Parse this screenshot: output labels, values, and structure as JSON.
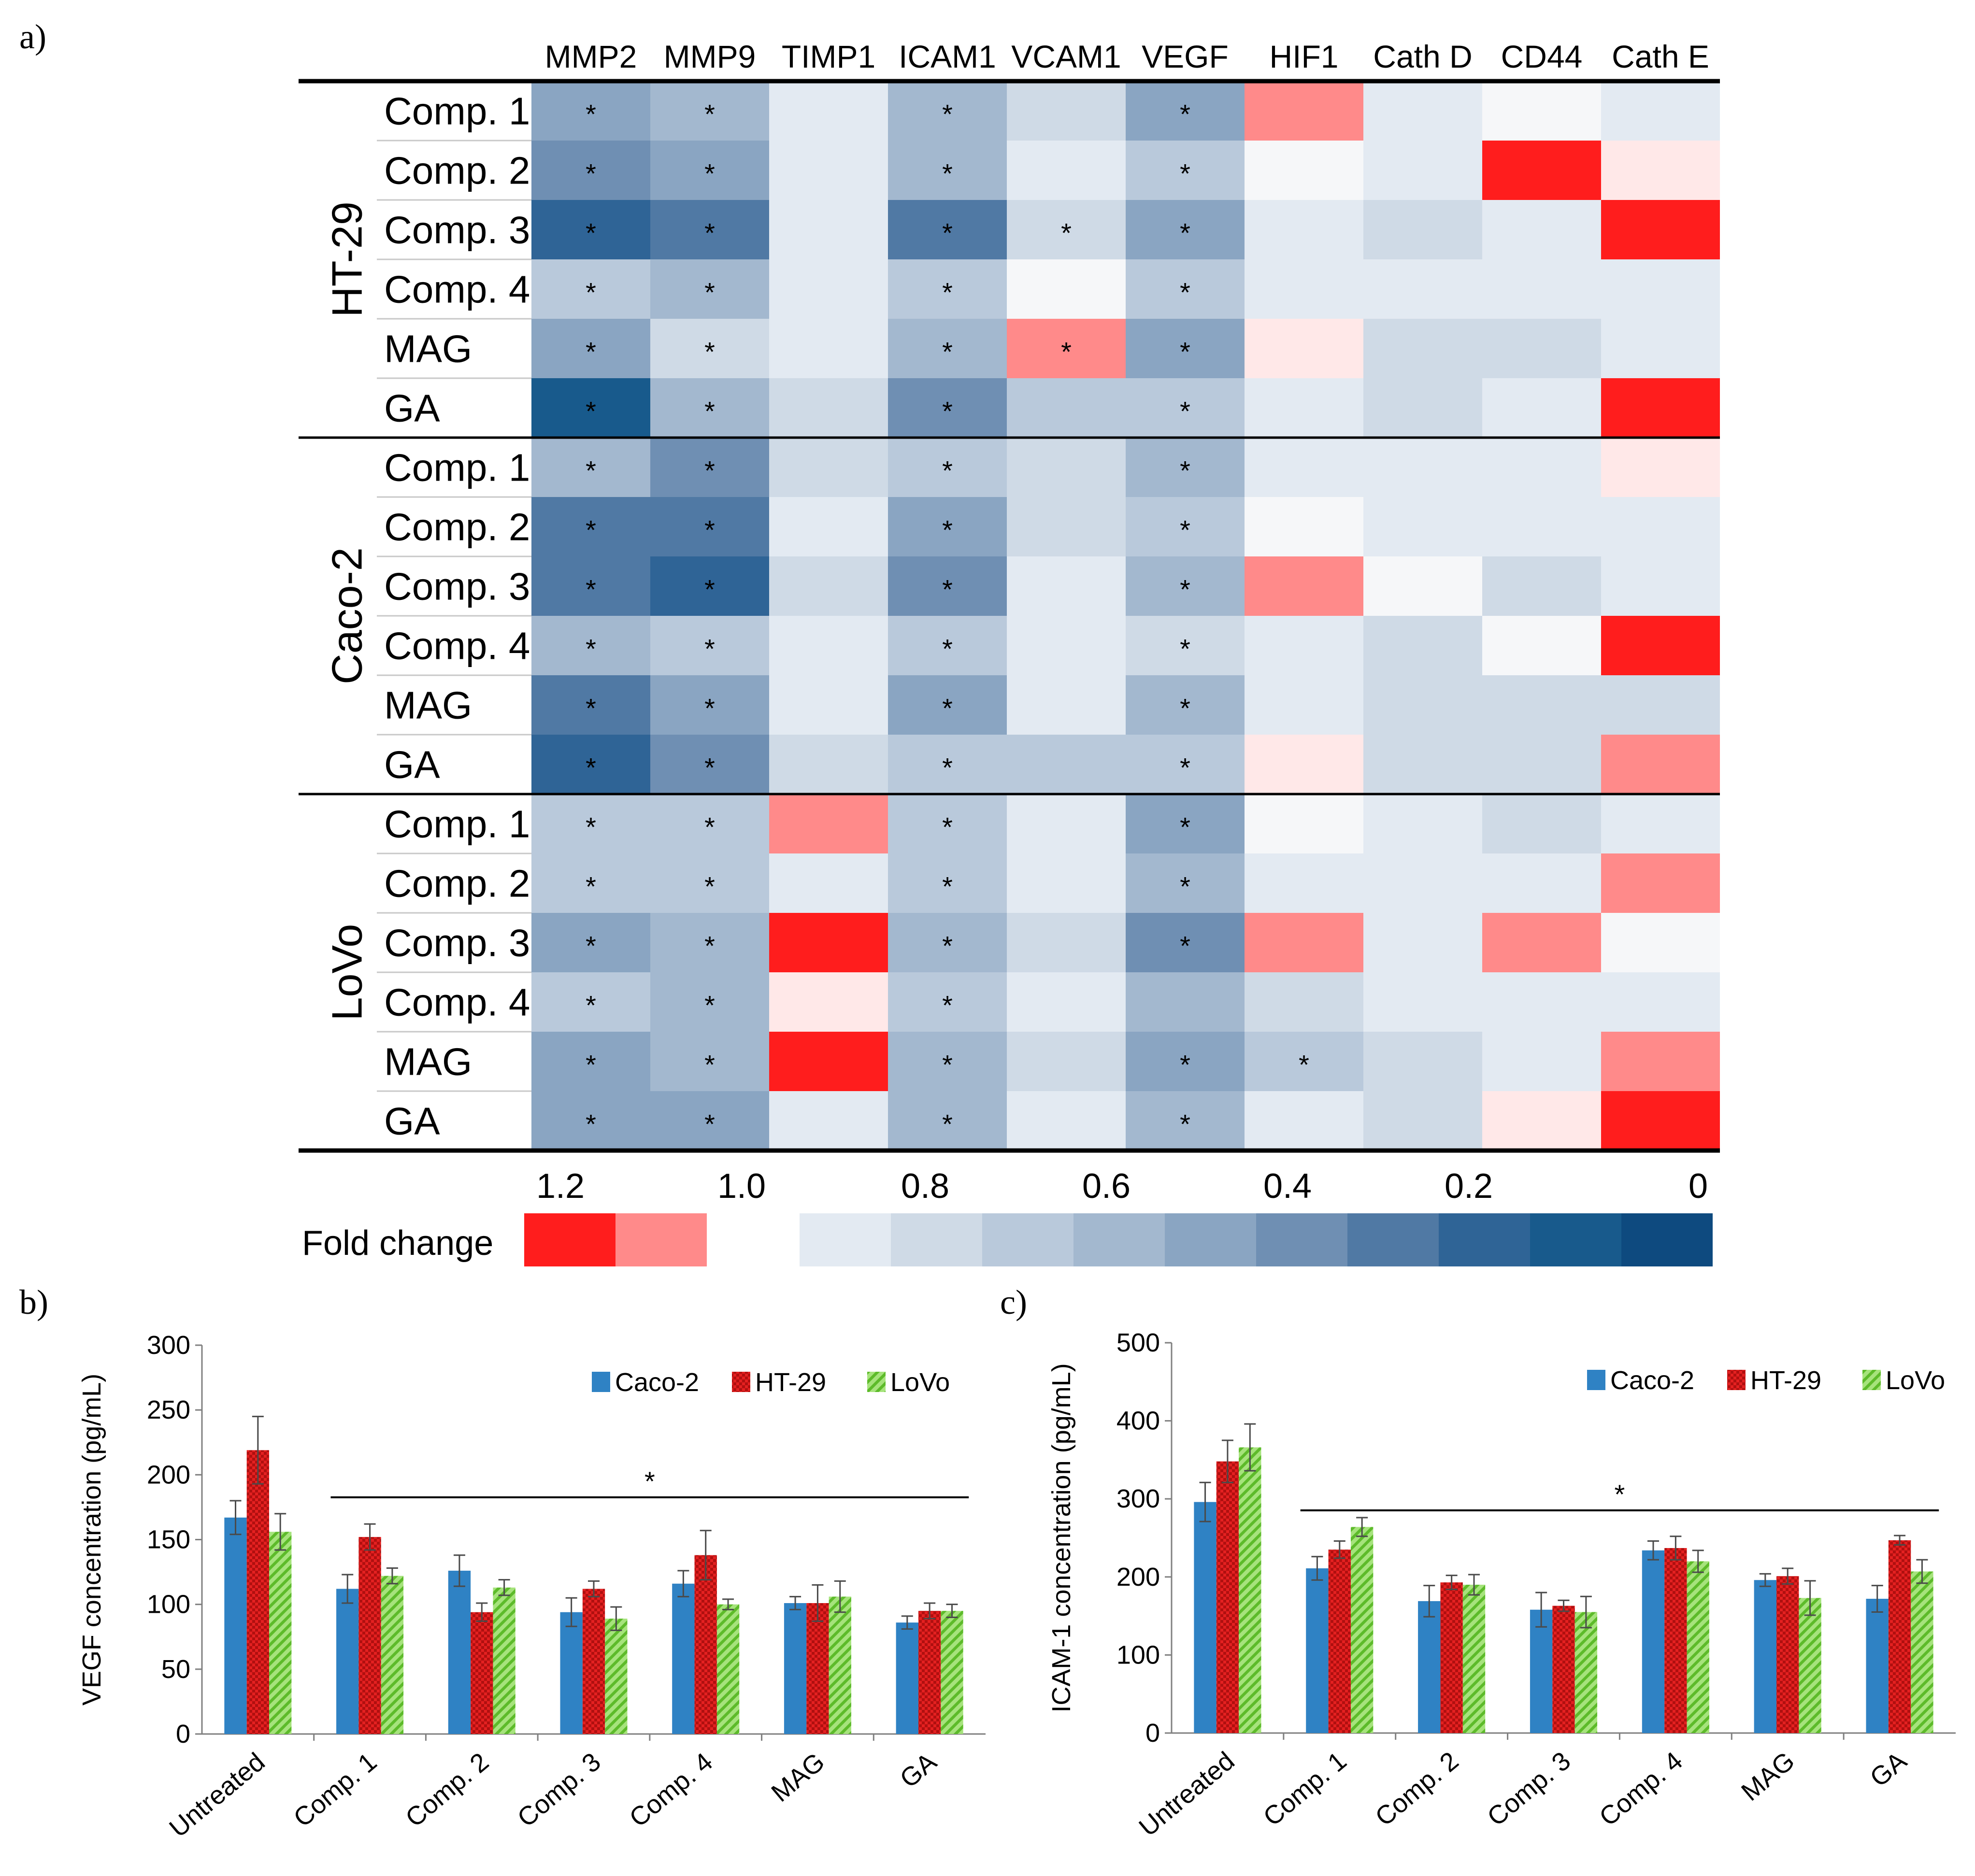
{
  "panel_labels": {
    "a": "a)",
    "b": "b)",
    "c": "c)"
  },
  "colors": {
    "caco2": "#2f82c4",
    "ht29": "#e42020",
    "lovo": "#7fd24a",
    "axis": "#808080",
    "blue_scale": [
      "#e3eaf2",
      "#cfdae6",
      "#b9c9db",
      "#a3b8cf",
      "#8aa5c2",
      "#6f8fb3",
      "#5079a4",
      "#2f6496",
      "#185a8c",
      "#0e4a7f"
    ],
    "red_scale": [
      "#ff1d1d",
      "#ff8a8a"
    ]
  },
  "chart_data": [
    {
      "type": "heatmap",
      "panel": "a)",
      "columns": [
        "MMP2",
        "MMP9",
        "TIMP1",
        "ICAM1",
        "VCAM1",
        "VEGF",
        "HIF1",
        "Cath D",
        "CD44",
        "Cath E"
      ],
      "groups": [
        {
          "name": "HT-29",
          "rows": [
            "Comp. 1",
            "Comp. 2",
            "Comp. 3",
            "Comp. 4",
            "MAG",
            "GA"
          ]
        },
        {
          "name": "Caco-2",
          "rows": [
            "Comp. 1",
            "Comp. 2",
            "Comp. 3",
            "Comp. 4",
            "MAG",
            "GA"
          ]
        },
        {
          "name": "LoVo",
          "rows": [
            "Comp. 1",
            "Comp. 2",
            "Comp. 3",
            "Comp. 4",
            "MAG",
            "GA"
          ]
        }
      ],
      "values": [
        [
          0.55,
          0.65,
          0.92,
          0.6,
          0.85,
          0.58,
          1.1,
          0.92,
          0.99,
          0.92
        ],
        [
          0.4,
          0.55,
          0.95,
          0.65,
          0.92,
          0.72,
          0.99,
          0.96,
          1.15,
          1.02
        ],
        [
          0.2,
          0.3,
          0.92,
          0.35,
          0.8,
          0.55,
          0.94,
          0.8,
          0.94,
          1.18
        ],
        [
          0.75,
          0.63,
          0.94,
          0.75,
          0.99,
          0.73,
          0.97,
          0.95,
          0.97,
          0.93
        ],
        [
          0.5,
          0.82,
          0.97,
          0.6,
          1.1,
          0.58,
          1.02,
          0.8,
          0.88,
          0.97
        ],
        [
          0.15,
          0.62,
          0.88,
          0.45,
          0.72,
          0.72,
          0.96,
          0.86,
          0.9,
          1.15
        ],
        [
          0.62,
          0.48,
          0.83,
          0.7,
          0.82,
          0.68,
          0.9,
          0.97,
          0.94,
          1.02
        ],
        [
          0.3,
          0.35,
          0.92,
          0.55,
          0.85,
          0.74,
          0.99,
          0.9,
          0.95,
          0.94
        ],
        [
          0.38,
          0.25,
          0.88,
          0.48,
          0.95,
          0.62,
          1.1,
          0.98,
          0.82,
          0.92
        ],
        [
          0.6,
          0.7,
          0.97,
          0.72,
          0.92,
          0.8,
          0.94,
          0.88,
          0.99,
          1.14
        ],
        [
          0.3,
          0.58,
          0.96,
          0.52,
          0.96,
          0.68,
          0.9,
          0.82,
          0.82,
          0.88
        ],
        [
          0.22,
          0.42,
          0.8,
          0.7,
          0.78,
          0.7,
          1.01,
          0.85,
          0.85,
          1.1
        ],
        [
          0.78,
          0.72,
          1.08,
          0.76,
          0.9,
          0.5,
          0.98,
          0.9,
          0.86,
          0.92
        ],
        [
          0.7,
          0.73,
          0.97,
          0.7,
          0.95,
          0.62,
          0.96,
          0.95,
          0.96,
          1.08
        ],
        [
          0.55,
          0.68,
          1.17,
          0.68,
          0.8,
          0.48,
          1.07,
          0.92,
          1.07,
          0.99
        ],
        [
          0.72,
          0.66,
          1.03,
          0.76,
          0.92,
          0.68,
          0.85,
          0.97,
          0.92,
          0.96
        ],
        [
          0.5,
          0.62,
          1.2,
          0.62,
          0.82,
          0.55,
          0.72,
          0.86,
          0.95,
          1.07
        ],
        [
          0.54,
          0.58,
          0.95,
          0.6,
          0.9,
          0.66,
          0.9,
          0.88,
          1.01,
          1.2
        ]
      ],
      "significant": [
        [
          1,
          1,
          0,
          1,
          0,
          1,
          0,
          0,
          0,
          0
        ],
        [
          1,
          1,
          0,
          1,
          0,
          1,
          0,
          0,
          0,
          0
        ],
        [
          1,
          1,
          0,
          1,
          1,
          1,
          0,
          0,
          0,
          0
        ],
        [
          1,
          1,
          0,
          1,
          0,
          1,
          0,
          0,
          0,
          0
        ],
        [
          1,
          1,
          0,
          1,
          1,
          1,
          0,
          0,
          0,
          0
        ],
        [
          1,
          1,
          0,
          1,
          0,
          1,
          0,
          0,
          0,
          0
        ],
        [
          1,
          1,
          0,
          1,
          0,
          1,
          0,
          0,
          0,
          0
        ],
        [
          1,
          1,
          0,
          1,
          0,
          1,
          0,
          0,
          0,
          0
        ],
        [
          1,
          1,
          0,
          1,
          0,
          1,
          0,
          0,
          0,
          0
        ],
        [
          1,
          1,
          0,
          1,
          0,
          1,
          0,
          0,
          0,
          0
        ],
        [
          1,
          1,
          0,
          1,
          0,
          1,
          0,
          0,
          0,
          0
        ],
        [
          1,
          1,
          0,
          1,
          0,
          1,
          0,
          0,
          0,
          0
        ],
        [
          1,
          1,
          0,
          1,
          0,
          1,
          0,
          0,
          0,
          0
        ],
        [
          1,
          1,
          0,
          1,
          0,
          1,
          0,
          0,
          0,
          0
        ],
        [
          1,
          1,
          0,
          1,
          0,
          1,
          0,
          0,
          0,
          0
        ],
        [
          1,
          1,
          0,
          1,
          0,
          0,
          0,
          0,
          0,
          0
        ],
        [
          1,
          1,
          0,
          1,
          0,
          1,
          1,
          0,
          0,
          0
        ],
        [
          1,
          1,
          0,
          1,
          0,
          1,
          0,
          0,
          0,
          0
        ]
      ],
      "significance_marker": "*",
      "scale": {
        "label": "Fold change",
        "ticks": [
          "1.2",
          "1.0",
          "0.8",
          "0.6",
          "0.4",
          "0.2",
          "0"
        ]
      }
    },
    {
      "type": "bar",
      "panel": "b)",
      "categories": [
        "Untreated",
        "Comp. 1",
        "Comp. 2",
        "Comp. 3",
        "Comp. 4",
        "MAG",
        "GA"
      ],
      "series": [
        {
          "name": "Caco-2",
          "values": [
            167,
            112,
            126,
            94,
            116,
            101,
            86
          ],
          "errors": [
            13,
            11,
            12,
            11,
            10,
            5,
            5
          ]
        },
        {
          "name": "HT-29",
          "values": [
            219,
            152,
            94,
            112,
            138,
            101,
            95
          ],
          "errors": [
            26,
            10,
            7,
            6,
            19,
            14,
            6
          ]
        },
        {
          "name": "LoVo",
          "values": [
            156,
            122,
            113,
            89,
            100,
            106,
            95
          ],
          "errors": [
            14,
            6,
            6,
            9,
            4,
            12,
            5
          ]
        }
      ],
      "ylabel": "VEGF concentration (pg/mL)",
      "ylim": [
        0,
        300
      ],
      "yticks": [
        "0",
        "50",
        "100",
        "150",
        "200",
        "250",
        "300"
      ],
      "significance": {
        "label": "*",
        "from": "Comp. 1",
        "to": "GA"
      },
      "legend": "top-right"
    },
    {
      "type": "bar",
      "panel": "c)",
      "categories": [
        "Untreated",
        "Comp. 1",
        "Comp. 2",
        "Comp. 3",
        "Comp. 4",
        "MAG",
        "GA"
      ],
      "series": [
        {
          "name": "Caco-2",
          "values": [
            296,
            211,
            169,
            158,
            234,
            196,
            172
          ],
          "errors": [
            25,
            15,
            20,
            22,
            12,
            8,
            17
          ]
        },
        {
          "name": "HT-29",
          "values": [
            348,
            235,
            193,
            163,
            237,
            201,
            247
          ],
          "errors": [
            27,
            11,
            9,
            7,
            15,
            10,
            6
          ]
        },
        {
          "name": "LoVo",
          "values": [
            366,
            264,
            190,
            155,
            220,
            173,
            207
          ],
          "errors": [
            30,
            12,
            13,
            20,
            14,
            22,
            15
          ]
        }
      ],
      "ylabel": "ICAM-1 concentration (pg/mL)",
      "ylim": [
        0,
        500
      ],
      "yticks": [
        "0",
        "100",
        "200",
        "300",
        "400",
        "500"
      ],
      "significance": {
        "label": "*",
        "from": "Comp. 1",
        "to": "GA"
      },
      "legend": "top-right"
    }
  ]
}
